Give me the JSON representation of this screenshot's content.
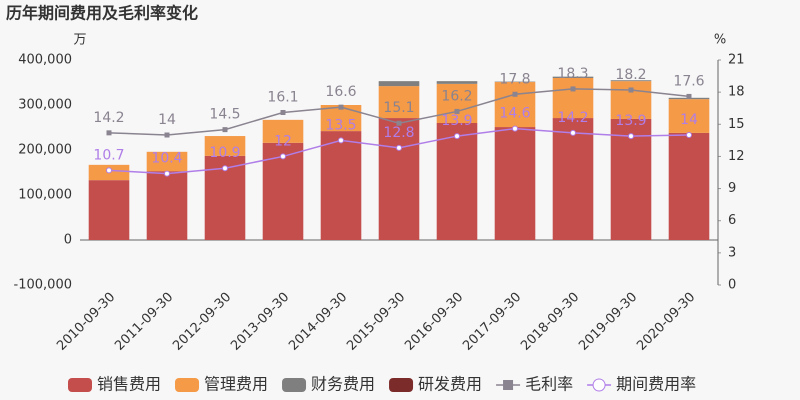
{
  "chart_data": {
    "type": "bar-line",
    "title": "历年期间费用及毛利率变化",
    "y_label": "万",
    "y2_label": "%",
    "categories": [
      "2010-09-30",
      "2011-09-30",
      "2012-09-30",
      "2013-09-30",
      "2014-09-30",
      "2015-09-30",
      "2016-09-30",
      "2017-09-30",
      "2018-09-30",
      "2019-09-30",
      "2020-09-30"
    ],
    "ylim": [
      -100000,
      400000
    ],
    "yticks": [
      {
        "value": -100000,
        "label": "-100,000"
      },
      0,
      {
        "value": 100000,
        "label": "100,000"
      },
      {
        "value": 200000,
        "label": "200,000"
      },
      {
        "value": 300000,
        "label": "300,000"
      },
      {
        "value": 400000,
        "label": "400,000"
      }
    ],
    "y2lim": [
      0,
      21
    ],
    "y2ticks": [
      0,
      3,
      6,
      9,
      12,
      15,
      18,
      21
    ],
    "series": [
      {
        "name": "销售费用",
        "kind": "bar",
        "color": "#c44e4c",
        "values": [
          133000,
          153000,
          187000,
          216000,
          242000,
          271000,
          260000,
          251000,
          271000,
          269000,
          238000
        ]
      },
      {
        "name": "管理费用",
        "kind": "bar",
        "color": "#f59a46",
        "values": [
          34000,
          43000,
          44000,
          51000,
          58000,
          71000,
          87000,
          100000,
          89000,
          84000,
          75000
        ]
      },
      {
        "name": "财务费用",
        "kind": "bar",
        "color": "#7f7f7f",
        "values": [
          0,
          0,
          0,
          0,
          0,
          11000,
          6000,
          1000,
          3000,
          2000,
          3000
        ]
      },
      {
        "name": "研发费用",
        "kind": "bar",
        "color": "#7b2b2a",
        "values": [
          0,
          0,
          0,
          0,
          0,
          0,
          0,
          0,
          0,
          0,
          0
        ]
      },
      {
        "name": "毛利率",
        "kind": "line",
        "axis": "y2",
        "marker": "square",
        "color": "#8a8390",
        "values": [
          14.2,
          14,
          14.5,
          16.1,
          16.6,
          15.1,
          16.2,
          17.8,
          18.3,
          18.2,
          17.6
        ]
      },
      {
        "name": "期间费用率",
        "kind": "line",
        "axis": "y2",
        "marker": "circle",
        "color": "#b07ee8",
        "values": [
          10.7,
          10.4,
          10.9,
          12,
          13.5,
          12.8,
          13.9,
          14.6,
          14.2,
          13.9,
          14
        ]
      }
    ]
  }
}
